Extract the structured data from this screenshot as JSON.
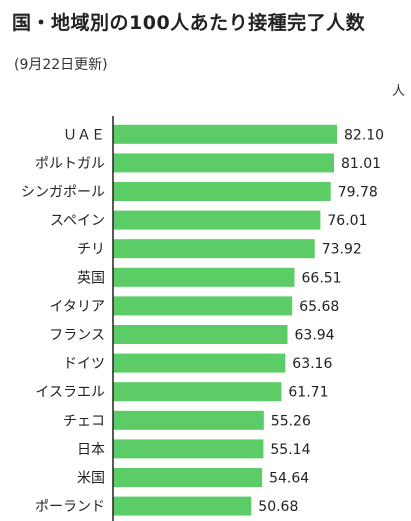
{
  "title": "国・地域別の100人あたり接種完了人数",
  "subtitle": "(9月22日更新)",
  "unit": "人",
  "colors": {
    "bar": "#5ccd66",
    "axis": "#222222"
  },
  "chart_data": {
    "type": "bar",
    "orientation": "horizontal",
    "categories": [
      "ＵＡＥ",
      "ポルトガル",
      "シンガポール",
      "スペイン",
      "チリ",
      "英国",
      "イタリア",
      "フランス",
      "ドイツ",
      "イスラエル",
      "チェコ",
      "日本",
      "米国",
      "ポーランド"
    ],
    "values": [
      82.1,
      81.01,
      79.78,
      76.01,
      73.92,
      66.51,
      65.68,
      63.94,
      63.16,
      61.71,
      55.26,
      55.14,
      54.64,
      50.68
    ],
    "value_labels": [
      "82.10",
      "81.01",
      "79.78",
      "76.01",
      "73.92",
      "66.51",
      "65.68",
      "63.94",
      "63.16",
      "61.71",
      "55.26",
      "55.14",
      "54.64",
      "50.68"
    ],
    "title": "国・地域別の100人あたり接種完了人数",
    "ylabel": "人",
    "xlim": [
      0,
      82.1
    ],
    "grid": false
  }
}
